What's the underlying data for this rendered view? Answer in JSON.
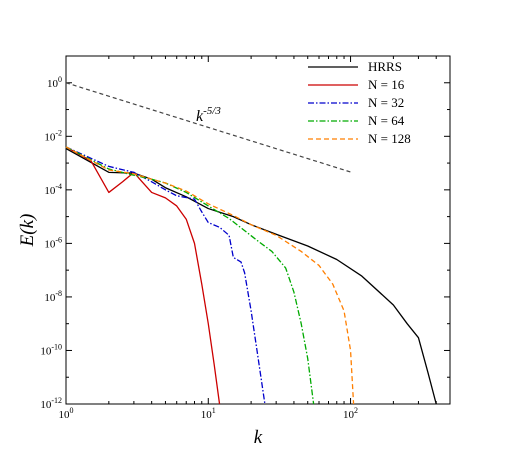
{
  "chart_data": {
    "type": "line",
    "title": "",
    "xlabel": "k",
    "ylabel": "E(k)",
    "xscale": "log",
    "yscale": "log",
    "xlim": [
      1,
      500
    ],
    "ylim": [
      1e-12,
      10
    ],
    "grid": false,
    "legend_position": "top-right",
    "x_tick_labels": [
      {
        "value": 1,
        "base": "10",
        "exp": "0"
      },
      {
        "value": 10,
        "base": "10",
        "exp": "1"
      },
      {
        "value": 100,
        "base": "10",
        "exp": "2"
      }
    ],
    "y_tick_labels": [
      {
        "value": 1,
        "base": "10",
        "exp": "0"
      },
      {
        "value": 0.01,
        "base": "10",
        "exp": "-2"
      },
      {
        "value": 0.0001,
        "base": "10",
        "exp": "-4"
      },
      {
        "value": 1e-06,
        "base": "10",
        "exp": "-6"
      },
      {
        "value": 1e-08,
        "base": "10",
        "exp": "-8"
      },
      {
        "value": 1e-10,
        "base": "10",
        "exp": "-10"
      },
      {
        "value": 1e-12,
        "base": "10",
        "exp": "-12"
      }
    ],
    "annotation": {
      "base": "k",
      "exp": "-5/3"
    },
    "reference_line": {
      "style": "dashed",
      "color": "#444444",
      "points": [
        [
          1,
          1.0
        ],
        [
          100,
          0.000464
        ]
      ]
    },
    "series": [
      {
        "name": "HRRS",
        "color": "#000000",
        "dash": "solid",
        "points": [
          [
            1,
            0.0035
          ],
          [
            2,
            0.00045
          ],
          [
            3,
            0.00042
          ],
          [
            4,
            0.00025
          ],
          [
            5,
            0.00012
          ],
          [
            7,
            5.5e-05
          ],
          [
            10,
            2e-05
          ],
          [
            15,
            1e-05
          ],
          [
            20,
            5e-06
          ],
          [
            30,
            2.2e-06
          ],
          [
            50,
            8e-07
          ],
          [
            80,
            2.5e-07
          ],
          [
            120,
            6e-08
          ],
          [
            200,
            5e-09
          ],
          [
            250,
            1e-09
          ],
          [
            300,
            3e-10
          ],
          [
            350,
            1.5e-11
          ],
          [
            400,
            1e-12
          ]
        ]
      },
      {
        "name": "N = 16",
        "color": "#cc0000",
        "dash": "solid",
        "points": [
          [
            1,
            0.004
          ],
          [
            1.5,
            0.0012
          ],
          [
            2,
            8e-05
          ],
          [
            2.5,
            0.0002
          ],
          [
            3,
            0.00045
          ],
          [
            3.3,
            0.00025
          ],
          [
            4,
            8e-05
          ],
          [
            5,
            5e-05
          ],
          [
            6,
            2.5e-05
          ],
          [
            7,
            8e-06
          ],
          [
            8,
            1e-06
          ],
          [
            9,
            3e-08
          ],
          [
            10,
            1e-09
          ],
          [
            11,
            3e-11
          ],
          [
            12,
            1e-12
          ]
        ]
      },
      {
        "name": "N = 32",
        "color": "#0000cc",
        "dash": "dashdot",
        "points": [
          [
            1,
            0.004
          ],
          [
            2,
            0.00075
          ],
          [
            3,
            0.00045
          ],
          [
            4,
            0.0002
          ],
          [
            5,
            0.0001
          ],
          [
            6,
            6e-05
          ],
          [
            8,
            4.5e-05
          ],
          [
            9,
            1.5e-05
          ],
          [
            10,
            6e-06
          ],
          [
            12,
            4e-06
          ],
          [
            14,
            2e-06
          ],
          [
            15,
            3e-07
          ],
          [
            17,
            2e-07
          ],
          [
            18,
            8e-08
          ],
          [
            20,
            3e-09
          ],
          [
            22,
            1e-10
          ],
          [
            25,
            1e-12
          ]
        ]
      },
      {
        "name": "N = 64",
        "color": "#00aa00",
        "dash": "dashdot",
        "points": [
          [
            1,
            0.004
          ],
          [
            2,
            0.0006
          ],
          [
            3,
            0.00035
          ],
          [
            4,
            0.00025
          ],
          [
            5,
            0.00018
          ],
          [
            7,
            8e-05
          ],
          [
            10,
            2.5e-05
          ],
          [
            14,
            8.5e-06
          ],
          [
            18,
            3e-06
          ],
          [
            22,
            1.3e-06
          ],
          [
            28,
            5e-07
          ],
          [
            35,
            1.2e-07
          ],
          [
            40,
            1.5e-08
          ],
          [
            45,
            1e-09
          ],
          [
            50,
            5e-11
          ],
          [
            55,
            1e-12
          ]
        ]
      },
      {
        "name": "N = 128",
        "color": "#ff7f00",
        "dash": "dashed",
        "points": [
          [
            1,
            0.004
          ],
          [
            2,
            0.00055
          ],
          [
            3,
            0.0004
          ],
          [
            4,
            0.00025
          ],
          [
            5,
            0.00018
          ],
          [
            7,
            9e-05
          ],
          [
            10,
            3e-05
          ],
          [
            15,
            1.1e-05
          ],
          [
            20,
            5e-06
          ],
          [
            30,
            2e-06
          ],
          [
            45,
            5e-07
          ],
          [
            60,
            1.5e-07
          ],
          [
            75,
            3e-08
          ],
          [
            90,
            3e-09
          ],
          [
            100,
            1e-10
          ],
          [
            105,
            1e-12
          ]
        ]
      }
    ]
  }
}
